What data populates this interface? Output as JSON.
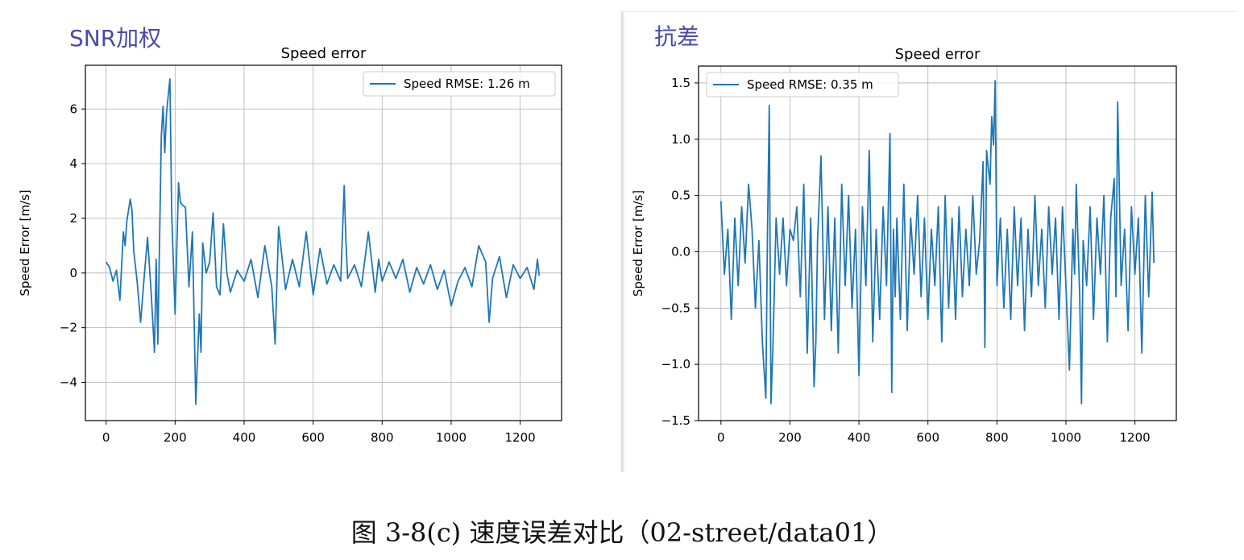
{
  "figure": {
    "caption": "图 3-8(c)  速度误差对比（02-street/data01）"
  },
  "panels": [
    {
      "label": "SNR加权",
      "label_color": "#4a4aa8"
    },
    {
      "label": "抗差",
      "label_color": "#4a4aa8"
    }
  ],
  "chart_data": [
    {
      "type": "line",
      "title": "Speed error",
      "xlabel": "",
      "ylabel": "Speed Error [m/s]",
      "xlim": [
        -60,
        1320
      ],
      "ylim": [
        -5.4,
        7.6
      ],
      "xticks": [
        0,
        200,
        400,
        600,
        800,
        1000,
        1200
      ],
      "xtick_labels": [
        "0",
        "200",
        "400",
        "600",
        "800",
        "1000",
        "1200"
      ],
      "yticks": [
        -4,
        -2,
        0,
        2,
        4,
        6
      ],
      "ytick_labels": [
        "−4",
        "−2",
        "0",
        "2",
        "4",
        "6"
      ],
      "grid": true,
      "legend": {
        "position": "top-right",
        "entries": [
          "Speed RMSE: 1.26 m"
        ]
      },
      "series": [
        {
          "name": "Speed RMSE: 1.26 m",
          "color": "#1f77b4",
          "x": [
            0,
            10,
            20,
            30,
            40,
            50,
            55,
            60,
            70,
            75,
            80,
            90,
            100,
            110,
            120,
            130,
            140,
            145,
            150,
            160,
            165,
            170,
            175,
            180,
            185,
            190,
            200,
            210,
            215,
            220,
            230,
            240,
            250,
            260,
            270,
            275,
            280,
            290,
            300,
            310,
            320,
            330,
            340,
            350,
            360,
            380,
            400,
            420,
            440,
            460,
            480,
            490,
            495,
            500,
            520,
            540,
            560,
            580,
            600,
            620,
            640,
            660,
            680,
            690,
            695,
            700,
            720,
            740,
            760,
            780,
            790,
            800,
            820,
            840,
            860,
            880,
            900,
            920,
            940,
            960,
            980,
            1000,
            1020,
            1040,
            1060,
            1080,
            1100,
            1110,
            1120,
            1140,
            1160,
            1180,
            1200,
            1220,
            1240,
            1250,
            1255
          ],
          "values": [
            0.4,
            0.2,
            -0.3,
            0.1,
            -1.0,
            1.5,
            1.0,
            1.9,
            2.7,
            2.3,
            0.8,
            -0.3,
            -1.8,
            -0.2,
            1.3,
            -0.6,
            -2.9,
            0.5,
            -2.6,
            5.0,
            6.1,
            4.4,
            5.8,
            6.5,
            7.1,
            2.2,
            -1.5,
            3.3,
            2.6,
            2.5,
            2.4,
            -0.5,
            1.5,
            -4.8,
            -1.5,
            -2.9,
            1.1,
            0.0,
            0.4,
            2.2,
            -0.5,
            -0.8,
            1.8,
            0.0,
            -0.7,
            0.1,
            -0.3,
            0.5,
            -0.9,
            1.0,
            -0.5,
            -2.6,
            -0.3,
            1.7,
            -0.6,
            0.5,
            -0.5,
            1.5,
            -0.8,
            0.9,
            -0.4,
            0.3,
            -0.3,
            3.2,
            1.2,
            -0.2,
            0.3,
            -0.5,
            1.5,
            -0.7,
            0.5,
            -0.3,
            0.4,
            -0.2,
            0.5,
            -0.7,
            0.2,
            -0.4,
            0.3,
            -0.6,
            0.1,
            -1.2,
            -0.3,
            0.2,
            -0.5,
            1.0,
            0.4,
            -1.8,
            -0.2,
            0.6,
            -0.9,
            0.3,
            -0.2,
            0.2,
            -0.6,
            0.5,
            -0.1
          ]
        }
      ]
    },
    {
      "type": "line",
      "title": "Speed error",
      "xlabel": "",
      "ylabel": "Speed Error [m/s]",
      "xlim": [
        -65,
        1320
      ],
      "ylim": [
        -1.5,
        1.65
      ],
      "xticks": [
        0,
        200,
        400,
        600,
        800,
        1000,
        1200
      ],
      "xtick_labels": [
        "0",
        "200",
        "400",
        "600",
        "800",
        "1000",
        "1200"
      ],
      "yticks": [
        -1.5,
        -1.0,
        -0.5,
        0.0,
        0.5,
        1.0,
        1.5
      ],
      "ytick_labels": [
        "−1.5",
        "−1.0",
        "−0.5",
        "0.0",
        "0.5",
        "1.0",
        "1.5"
      ],
      "grid": true,
      "legend": {
        "position": "top-left",
        "entries": [
          "Speed RMSE: 0.35 m"
        ]
      },
      "series": [
        {
          "name": "Speed RMSE: 0.35 m",
          "color": "#1f77b4",
          "x": [
            0,
            10,
            20,
            30,
            40,
            50,
            60,
            70,
            80,
            90,
            100,
            110,
            120,
            130,
            135,
            140,
            145,
            150,
            160,
            170,
            180,
            190,
            200,
            210,
            220,
            230,
            240,
            250,
            260,
            270,
            275,
            280,
            290,
            300,
            310,
            320,
            330,
            340,
            350,
            360,
            370,
            380,
            390,
            400,
            410,
            420,
            430,
            440,
            450,
            460,
            470,
            480,
            490,
            495,
            500,
            505,
            510,
            520,
            530,
            540,
            550,
            560,
            570,
            580,
            590,
            600,
            610,
            620,
            630,
            640,
            650,
            660,
            670,
            680,
            690,
            700,
            710,
            720,
            730,
            740,
            750,
            760,
            765,
            770,
            780,
            785,
            790,
            795,
            800,
            810,
            820,
            830,
            840,
            850,
            860,
            870,
            880,
            890,
            900,
            910,
            920,
            930,
            940,
            950,
            960,
            970,
            980,
            990,
            1000,
            1010,
            1020,
            1025,
            1030,
            1040,
            1045,
            1050,
            1060,
            1070,
            1080,
            1090,
            1100,
            1110,
            1120,
            1130,
            1140,
            1145,
            1150,
            1160,
            1170,
            1180,
            1190,
            1200,
            1210,
            1220,
            1230,
            1240,
            1250,
            1255
          ],
          "values": [
            0.45,
            -0.2,
            0.2,
            -0.6,
            0.3,
            -0.3,
            0.4,
            -0.1,
            0.6,
            0.2,
            -0.5,
            0.1,
            -0.8,
            -1.3,
            0.2,
            1.3,
            -1.35,
            -0.9,
            0.3,
            -0.2,
            0.3,
            -0.3,
            0.2,
            0.1,
            0.4,
            -0.4,
            0.6,
            -0.9,
            0.3,
            -1.2,
            -0.8,
            0.1,
            0.85,
            -0.6,
            0.4,
            -0.7,
            0.3,
            -0.9,
            0.6,
            -0.3,
            0.5,
            -0.5,
            0.2,
            -1.1,
            0.4,
            -0.3,
            0.9,
            -0.8,
            0.2,
            -0.6,
            0.4,
            -0.3,
            1.05,
            -1.25,
            0.2,
            -0.4,
            0.3,
            -0.6,
            0.6,
            -0.7,
            0.3,
            -0.2,
            0.5,
            -0.4,
            0.3,
            -0.6,
            0.2,
            -0.3,
            0.4,
            -0.8,
            0.5,
            -0.5,
            0.3,
            -0.6,
            0.4,
            -0.4,
            0.2,
            -0.3,
            0.5,
            -0.2,
            0.1,
            0.8,
            -0.85,
            0.9,
            0.6,
            1.2,
            0.95,
            1.52,
            -0.3,
            0.3,
            -0.5,
            0.2,
            -0.6,
            0.4,
            -0.3,
            0.3,
            -0.7,
            0.2,
            -0.4,
            0.5,
            -0.3,
            0.2,
            -0.5,
            0.4,
            -0.2,
            0.3,
            -0.6,
            0.4,
            -0.3,
            -1.05,
            0.2,
            -0.2,
            0.6,
            -0.4,
            -1.35,
            0.1,
            -0.3,
            0.4,
            -0.6,
            0.3,
            -0.2,
            0.5,
            -0.8,
            0.3,
            0.65,
            -0.4,
            1.33,
            -0.3,
            0.2,
            -0.7,
            0.4,
            -0.2,
            0.3,
            -0.9,
            0.5,
            -0.4,
            0.53,
            -0.1
          ]
        }
      ]
    }
  ]
}
